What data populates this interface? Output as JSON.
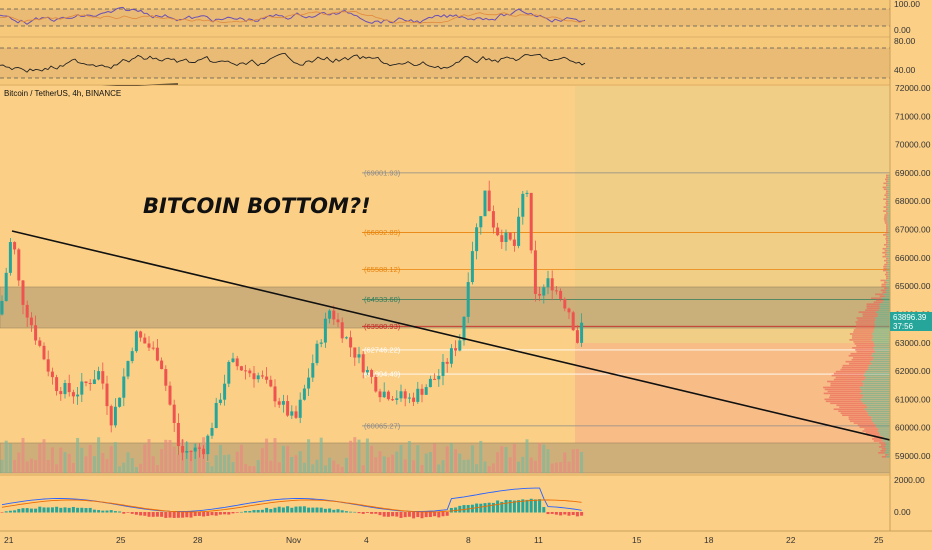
{
  "symbol_title": "Bitcoin / TetherUS, 4h, BINANCE",
  "headline": "BITCOIN BOTTOM?!",
  "price_badge": {
    "price": "63896.39",
    "countdown": "37:56",
    "color": "#26a69a"
  },
  "resistance_badge_color": "#b3261e",
  "price_axis": [
    "72000.00",
    "71000.00",
    "70000.00",
    "69000.00",
    "68000.00",
    "67000.00",
    "66000.00",
    "65000.00",
    "64000.00",
    "63000.00",
    "62000.00",
    "61000.00",
    "60000.00",
    "59000.00"
  ],
  "rsi_axis": [
    "100.00",
    "0.00"
  ],
  "osc_axis": [
    "80.00",
    "40.00"
  ],
  "macd_axis": [
    "2000.00",
    "0.00"
  ],
  "date_axis": [
    "21",
    "25",
    "28",
    "Nov",
    "4",
    "8",
    "11",
    "15",
    "18",
    "22",
    "25"
  ],
  "fib_levels": [
    {
      "label": "(69001.93)",
      "color": "#8a8a8a"
    },
    {
      "label": "(66892.89)",
      "color": "#e8830c"
    },
    {
      "label": "(65588.12)",
      "color": "#e8830c"
    },
    {
      "label": "(64533.60)",
      "color": "#2e7d5b"
    },
    {
      "label": "(63580.93)",
      "color": "#c62828"
    },
    {
      "label": "(62746.22)",
      "color": "#ffffff"
    },
    {
      "label": "(61894.49)",
      "color": "#ffffff"
    },
    {
      "label": "(60065.27)",
      "color": "#8a8a8a"
    }
  ],
  "colors": {
    "background": "#fbcf86",
    "up": "#26a69a",
    "down": "#ef5350",
    "trendline": "#111111",
    "zone": "#9c8a6a"
  }
}
